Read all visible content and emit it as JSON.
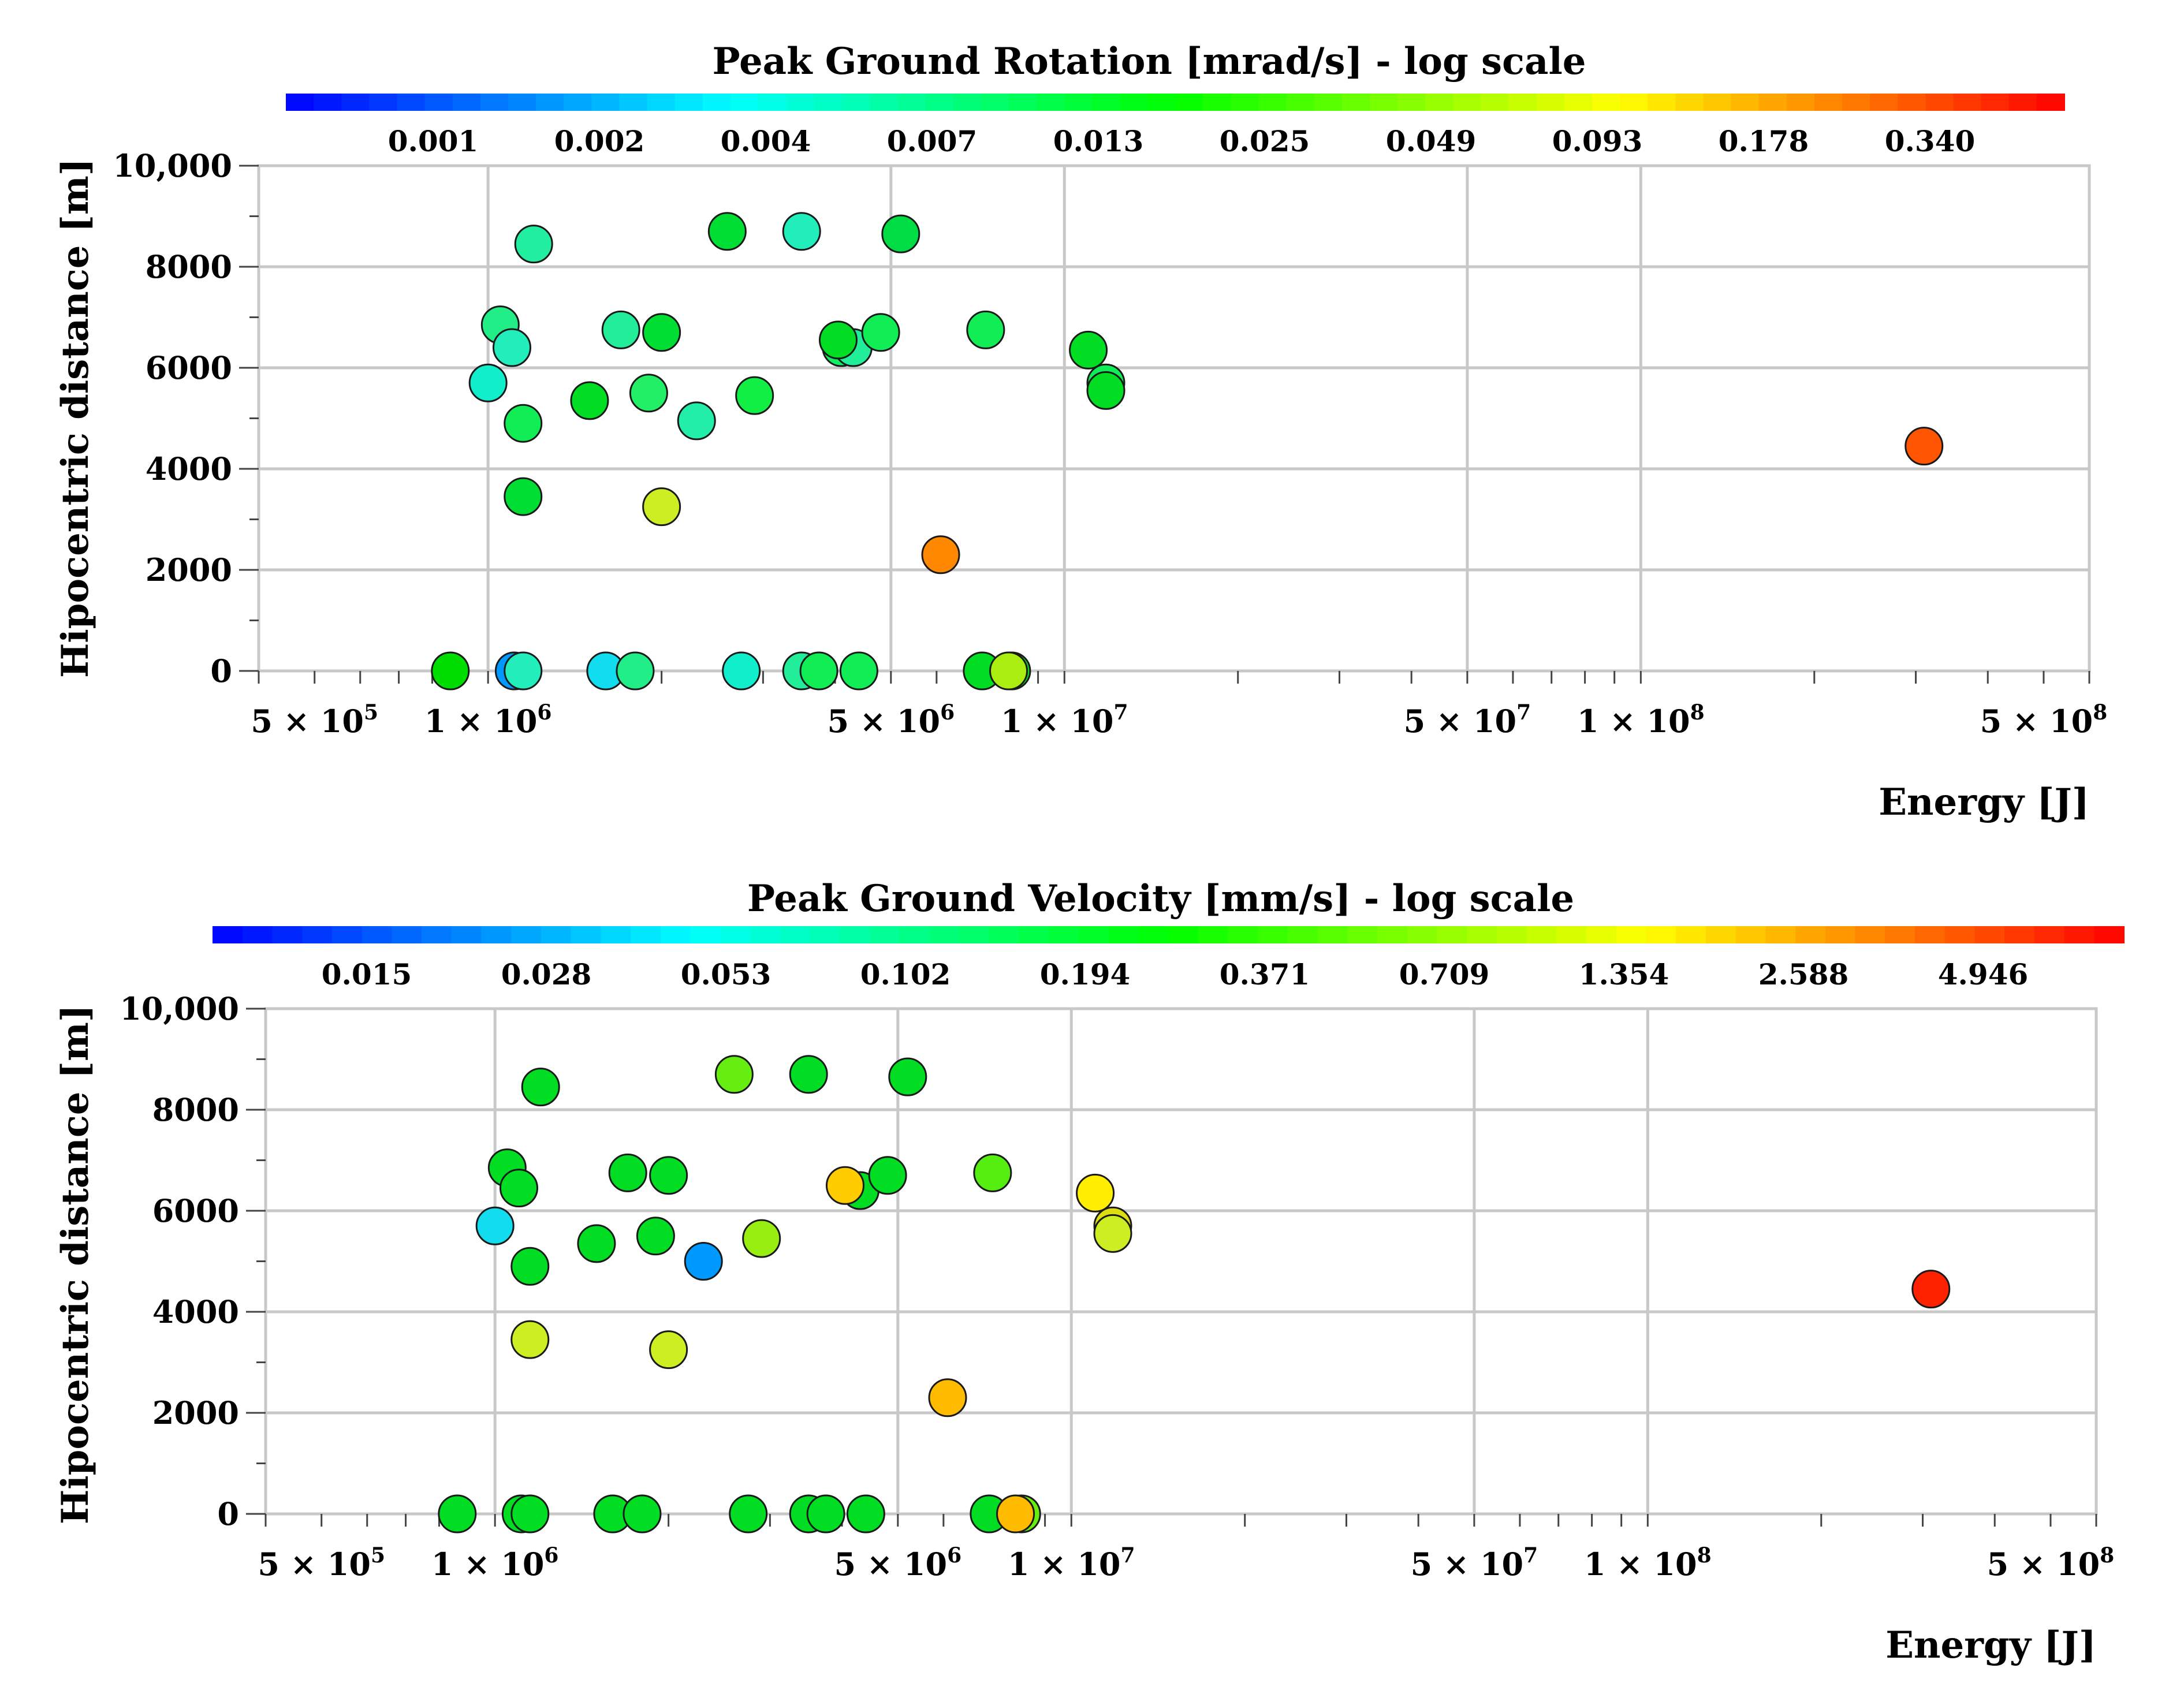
{
  "chart_data": [
    {
      "type": "scatter",
      "title": "Peak Ground Rotation [mrad/s] - log scale",
      "xlabel": "Energy [J]",
      "ylabel": "Hipocentric distance [m]",
      "xscale": "log",
      "xlim": [
        400000,
        600000000
      ],
      "ylim": [
        0,
        10000
      ],
      "yticks": [
        "0",
        "2000",
        "4000",
        "6000",
        "8000",
        "10,000"
      ],
      "xticks": [
        {
          "value": 500000,
          "mantissa": "5 × 10",
          "exp": "5"
        },
        {
          "value": 1000000,
          "mantissa": "1 × 10",
          "exp": "6"
        },
        {
          "value": 5000000,
          "mantissa": "5 × 10",
          "exp": "6"
        },
        {
          "value": 10000000,
          "mantissa": "1 × 10",
          "exp": "7"
        },
        {
          "value": 50000000,
          "mantissa": "5 × 10",
          "exp": "7"
        },
        {
          "value": 100000000,
          "mantissa": "1 × 10",
          "exp": "8"
        },
        {
          "value": 500000000,
          "mantissa": "5 × 10",
          "exp": "8"
        }
      ],
      "colorbar": {
        "scale": "log",
        "ticks": [
          "0.001",
          "0.002",
          "0.004",
          "0.007",
          "0.013",
          "0.025",
          "0.049",
          "0.093",
          "0.178",
          "0.340"
        ],
        "colormap": [
          "#0000ff",
          "#00ffff",
          "#00ff00",
          "#ffff00",
          "#ff0000"
        ]
      },
      "points": [
        {
          "x": 1200000,
          "y": 8450,
          "color": "#22eea0"
        },
        {
          "x": 2600000,
          "y": 8700,
          "color": "#00dd33"
        },
        {
          "x": 3500000,
          "y": 8700,
          "color": "#22eebb"
        },
        {
          "x": 5200000,
          "y": 8650,
          "color": "#00dd44"
        },
        {
          "x": 1000000,
          "y": 5700,
          "color": "#11eecc"
        },
        {
          "x": 1050000,
          "y": 6850,
          "color": "#22ee88"
        },
        {
          "x": 1100000,
          "y": 6400,
          "color": "#22eebb"
        },
        {
          "x": 1150000,
          "y": 4900,
          "color": "#11ee55"
        },
        {
          "x": 1150000,
          "y": 3450,
          "color": "#00dd33"
        },
        {
          "x": 1500000,
          "y": 5350,
          "color": "#00dd22"
        },
        {
          "x": 1700000,
          "y": 6750,
          "color": "#22ee99"
        },
        {
          "x": 1900000,
          "y": 5500,
          "color": "#22ee66"
        },
        {
          "x": 2000000,
          "y": 6700,
          "color": "#00dd33"
        },
        {
          "x": 2000000,
          "y": 3250,
          "color": "#ccee22"
        },
        {
          "x": 2300000,
          "y": 4950,
          "color": "#22eeaa"
        },
        {
          "x": 2900000,
          "y": 5450,
          "color": "#11ee44"
        },
        {
          "x": 4100000,
          "y": 6400,
          "color": "#11ee66"
        },
        {
          "x": 4300000,
          "y": 6400,
          "color": "#22ee99"
        },
        {
          "x": 4050000,
          "y": 6550,
          "color": "#00dd22"
        },
        {
          "x": 4800000,
          "y": 6700,
          "color": "#11ee55"
        },
        {
          "x": 6100000,
          "y": 2300,
          "color": "#ff8800"
        },
        {
          "x": 7300000,
          "y": 6750,
          "color": "#11ee55"
        },
        {
          "x": 11000000,
          "y": 6350,
          "color": "#00dd22"
        },
        {
          "x": 11800000,
          "y": 5700,
          "color": "#11ee55"
        },
        {
          "x": 11800000,
          "y": 5550,
          "color": "#00dd22"
        },
        {
          "x": 310000000,
          "y": 4450,
          "color": "#ff5500"
        },
        {
          "x": 860000,
          "y": 0,
          "color": "#00dd00"
        },
        {
          "x": 1110000,
          "y": 0,
          "color": "#0099ff"
        },
        {
          "x": 1150000,
          "y": 0,
          "color": "#22eebb"
        },
        {
          "x": 1600000,
          "y": 0,
          "color": "#11ddee"
        },
        {
          "x": 1800000,
          "y": 0,
          "color": "#22ee88"
        },
        {
          "x": 2750000,
          "y": 0,
          "color": "#11eecc"
        },
        {
          "x": 3500000,
          "y": 0,
          "color": "#22ee99"
        },
        {
          "x": 3750000,
          "y": 0,
          "color": "#11ee55"
        },
        {
          "x": 4400000,
          "y": 0,
          "color": "#11ee55"
        },
        {
          "x": 7200000,
          "y": 0,
          "color": "#00dd22"
        },
        {
          "x": 8100000,
          "y": 0,
          "color": "#00dd22"
        },
        {
          "x": 8000000,
          "y": 0,
          "color": "#aaee11"
        }
      ]
    },
    {
      "type": "scatter",
      "title": "Peak Ground Velocity [mm/s] - log scale",
      "xlabel": "Energy [J]",
      "ylabel": "Hipocentric distance [m]",
      "xscale": "log",
      "xlim": [
        400000,
        600000000
      ],
      "ylim": [
        0,
        10000
      ],
      "yticks": [
        "0",
        "2000",
        "4000",
        "6000",
        "8000",
        "10,000"
      ],
      "xticks": [
        {
          "value": 500000,
          "mantissa": "5 × 10",
          "exp": "5"
        },
        {
          "value": 1000000,
          "mantissa": "1 × 10",
          "exp": "6"
        },
        {
          "value": 5000000,
          "mantissa": "5 × 10",
          "exp": "6"
        },
        {
          "value": 10000000,
          "mantissa": "1 × 10",
          "exp": "7"
        },
        {
          "value": 50000000,
          "mantissa": "5 × 10",
          "exp": "7"
        },
        {
          "value": 100000000,
          "mantissa": "1 × 10",
          "exp": "8"
        },
        {
          "value": 500000000,
          "mantissa": "5 × 10",
          "exp": "8"
        }
      ],
      "colorbar": {
        "scale": "log",
        "ticks": [
          "0.015",
          "0.028",
          "0.053",
          "0.102",
          "0.194",
          "0.371",
          "0.709",
          "1.354",
          "2.588",
          "4.946"
        ],
        "colormap": [
          "#0000ff",
          "#00ffff",
          "#00ff00",
          "#ffff00",
          "#ff0000"
        ]
      },
      "points": [
        {
          "x": 1200000,
          "y": 8450,
          "color": "#00dd22"
        },
        {
          "x": 2600000,
          "y": 8700,
          "color": "#66ee11"
        },
        {
          "x": 3500000,
          "y": 8700,
          "color": "#00dd22"
        },
        {
          "x": 5200000,
          "y": 8650,
          "color": "#00dd22"
        },
        {
          "x": 1000000,
          "y": 5700,
          "color": "#11ddee"
        },
        {
          "x": 1050000,
          "y": 6850,
          "color": "#00dd22"
        },
        {
          "x": 1100000,
          "y": 6450,
          "color": "#00dd22"
        },
        {
          "x": 1150000,
          "y": 4900,
          "color": "#00dd22"
        },
        {
          "x": 1150000,
          "y": 3450,
          "color": "#ccee22"
        },
        {
          "x": 1500000,
          "y": 5350,
          "color": "#00dd22"
        },
        {
          "x": 1700000,
          "y": 6750,
          "color": "#00dd22"
        },
        {
          "x": 1900000,
          "y": 5500,
          "color": "#00dd22"
        },
        {
          "x": 2000000,
          "y": 6700,
          "color": "#00dd22"
        },
        {
          "x": 2000000,
          "y": 3250,
          "color": "#ccee22"
        },
        {
          "x": 2300000,
          "y": 5000,
          "color": "#0099ff"
        },
        {
          "x": 2900000,
          "y": 5450,
          "color": "#99ee11"
        },
        {
          "x": 4300000,
          "y": 6400,
          "color": "#00dd22"
        },
        {
          "x": 4050000,
          "y": 6500,
          "color": "#ffcc00"
        },
        {
          "x": 4800000,
          "y": 6700,
          "color": "#00dd22"
        },
        {
          "x": 6100000,
          "y": 2300,
          "color": "#ffbb00"
        },
        {
          "x": 7300000,
          "y": 6750,
          "color": "#55ee11"
        },
        {
          "x": 11000000,
          "y": 6350,
          "color": "#ffee00"
        },
        {
          "x": 11800000,
          "y": 5700,
          "color": "#dddd11"
        },
        {
          "x": 11800000,
          "y": 5550,
          "color": "#ccee22"
        },
        {
          "x": 310000000,
          "y": 4450,
          "color": "#ff2200"
        },
        {
          "x": 860000,
          "y": 0,
          "color": "#00dd22"
        },
        {
          "x": 1110000,
          "y": 0,
          "color": "#00dd22"
        },
        {
          "x": 1150000,
          "y": 0,
          "color": "#00dd22"
        },
        {
          "x": 1600000,
          "y": 0,
          "color": "#00dd22"
        },
        {
          "x": 1800000,
          "y": 0,
          "color": "#00dd22"
        },
        {
          "x": 2750000,
          "y": 0,
          "color": "#00dd22"
        },
        {
          "x": 3500000,
          "y": 0,
          "color": "#00dd22"
        },
        {
          "x": 3750000,
          "y": 0,
          "color": "#00dd22"
        },
        {
          "x": 4400000,
          "y": 0,
          "color": "#00dd22"
        },
        {
          "x": 7200000,
          "y": 0,
          "color": "#00dd22"
        },
        {
          "x": 8200000,
          "y": 0,
          "color": "#66ee11"
        },
        {
          "x": 8000000,
          "y": 0,
          "color": "#ffbb00"
        }
      ]
    }
  ]
}
